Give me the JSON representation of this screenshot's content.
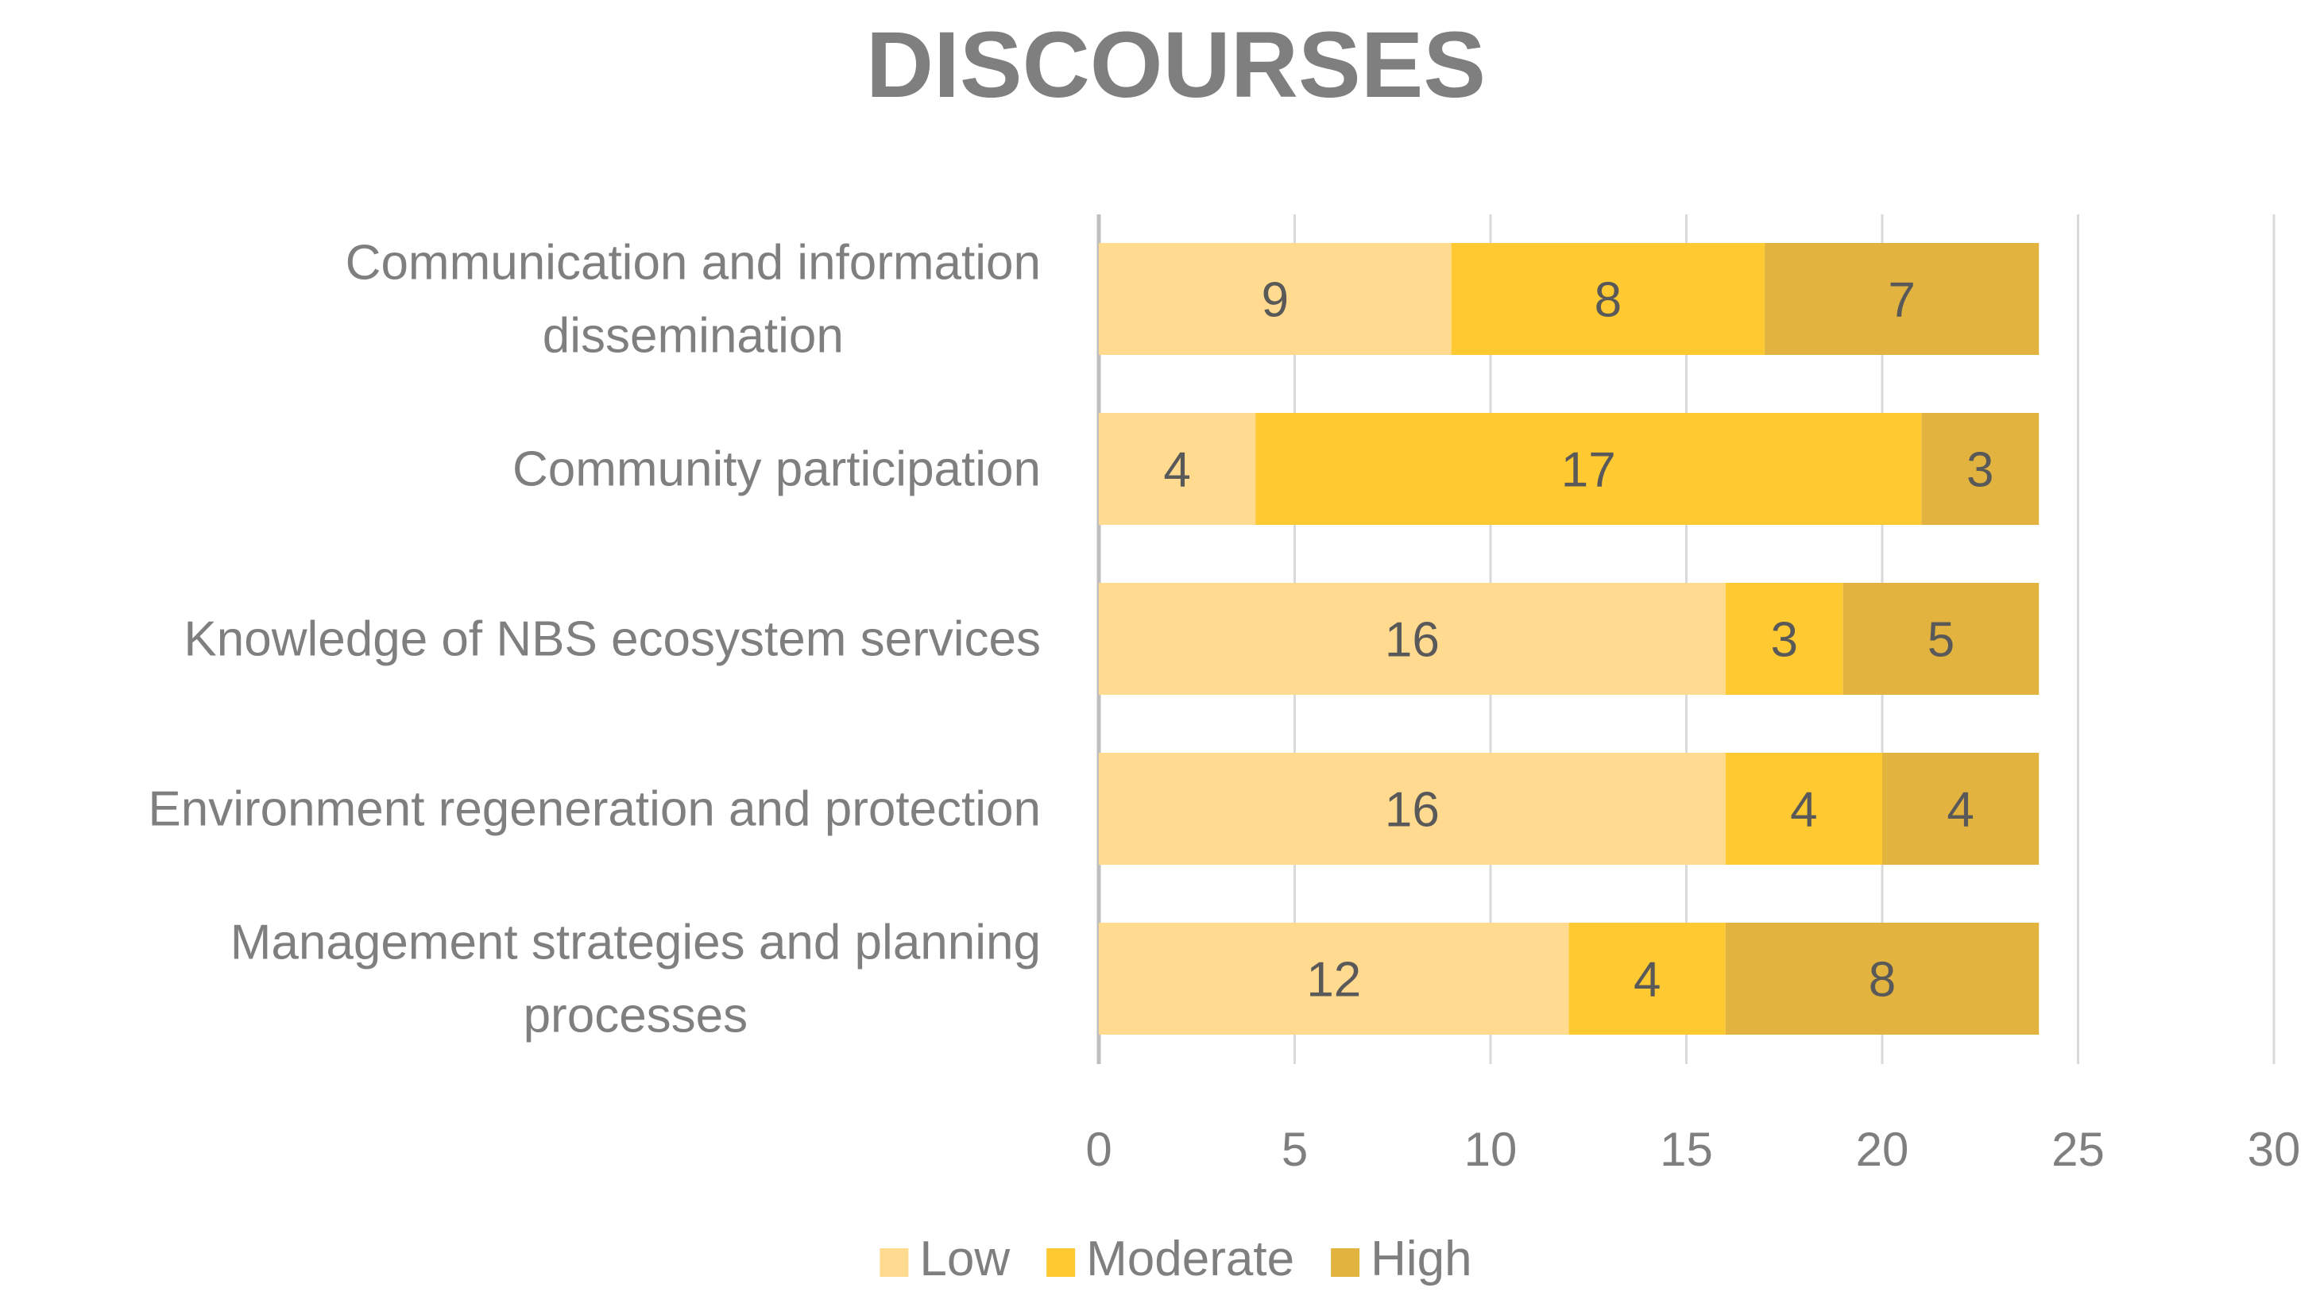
{
  "chart_data": {
    "type": "bar",
    "orientation": "horizontal",
    "stacked": true,
    "title": "DISCOURSES",
    "categories": [
      [
        "Communication and information",
        "dissemination"
      ],
      [
        "Community participation"
      ],
      [
        "Knowledge of NBS ecosystem services"
      ],
      [
        "Environment regeneration and protection"
      ],
      [
        "Management strategies and planning",
        "processes"
      ]
    ],
    "series": [
      {
        "name": "Low",
        "color": "#FFDA8F",
        "values": [
          9,
          4,
          16,
          16,
          12
        ]
      },
      {
        "name": "Moderate",
        "color": "#FFC931",
        "values": [
          8,
          17,
          3,
          4,
          4
        ]
      },
      {
        "name": "High",
        "color": "#E2B43F",
        "values": [
          7,
          3,
          5,
          4,
          8
        ]
      }
    ],
    "xlim": [
      0,
      30
    ],
    "xticks": [
      0,
      5,
      10,
      15,
      20,
      25,
      30
    ],
    "grid": true,
    "legend_position": "bottom",
    "xlabel": "",
    "ylabel": ""
  }
}
